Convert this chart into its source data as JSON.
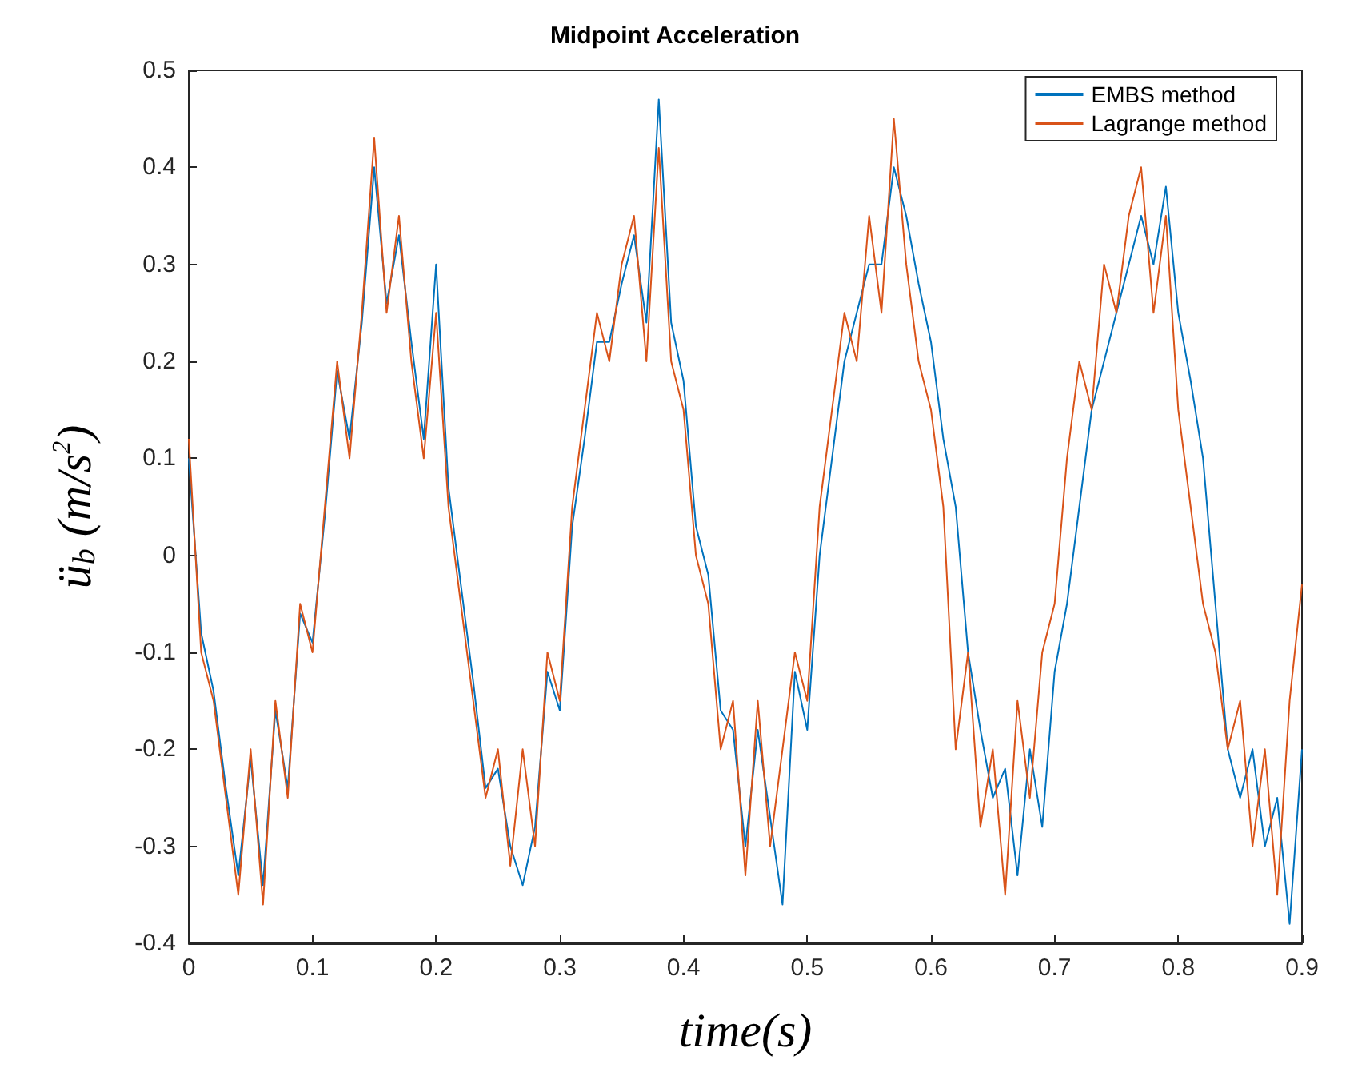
{
  "chart_data": {
    "type": "line",
    "title": "Midpoint Acceleration",
    "xlabel": "time(s)",
    "ylabel": "ü$_{b}$ (m/s$^{2}$)",
    "xlim": [
      0,
      0.9
    ],
    "ylim": [
      -0.4,
      0.5
    ],
    "xticks": [
      0,
      0.1,
      0.2,
      0.3,
      0.4,
      0.5,
      0.6,
      0.7,
      0.8,
      0.9
    ],
    "yticks": [
      -0.4,
      -0.3,
      -0.2,
      -0.1,
      0,
      0.1,
      0.2,
      0.3,
      0.4,
      0.5
    ],
    "grid": false,
    "legend": "top right",
    "marker": "none",
    "line_style": "solid",
    "x": [
      0,
      0.01,
      0.02,
      0.03,
      0.04,
      0.05,
      0.06,
      0.07,
      0.08,
      0.09,
      0.1,
      0.11,
      0.12,
      0.13,
      0.14,
      0.15,
      0.16,
      0.17,
      0.18,
      0.19,
      0.2,
      0.21,
      0.22,
      0.23,
      0.24,
      0.25,
      0.26,
      0.27,
      0.28,
      0.29,
      0.3,
      0.31,
      0.32,
      0.33,
      0.34,
      0.35,
      0.36,
      0.37,
      0.38,
      0.39,
      0.4,
      0.41,
      0.42,
      0.43,
      0.44,
      0.45,
      0.46,
      0.47,
      0.48,
      0.49,
      0.5,
      0.51,
      0.52,
      0.53,
      0.54,
      0.55,
      0.56,
      0.57,
      0.58,
      0.59,
      0.6,
      0.61,
      0.62,
      0.63,
      0.64,
      0.65,
      0.66,
      0.67,
      0.68,
      0.69,
      0.7,
      0.71,
      0.72,
      0.73,
      0.74,
      0.75,
      0.76,
      0.77,
      0.78,
      0.79,
      0.8,
      0.81,
      0.82,
      0.83,
      0.84,
      0.85,
      0.86,
      0.87,
      0.88,
      0.89,
      0.9
    ],
    "series": [
      {
        "name": "EMBS method",
        "color": "#0072bd",
        "values": [
          0.1,
          -0.08,
          -0.14,
          -0.24,
          -0.33,
          -0.21,
          -0.34,
          -0.16,
          -0.24,
          -0.06,
          -0.09,
          0.04,
          0.19,
          0.12,
          0.24,
          0.4,
          0.26,
          0.33,
          0.22,
          0.12,
          0.3,
          0.07,
          -0.03,
          -0.13,
          -0.24,
          -0.22,
          -0.3,
          -0.34,
          -0.28,
          -0.12,
          -0.16,
          0.03,
          0.12,
          0.22,
          0.22,
          0.28,
          0.33,
          0.24,
          0.47,
          0.24,
          0.18,
          0.03,
          -0.02,
          -0.16,
          -0.18,
          -0.3,
          -0.18,
          -0.27,
          -0.36,
          -0.12,
          -0.18,
          0,
          0.1,
          0.2,
          0.25,
          0.3,
          0.3,
          0.4,
          0.35,
          0.28,
          0.22,
          0.12,
          0.05,
          -0.1,
          -0.18,
          -0.25,
          -0.22,
          -0.33,
          -0.2,
          -0.28,
          -0.12,
          -0.05,
          0.05,
          0.15,
          0.2,
          0.25,
          0.3,
          0.35,
          0.3,
          0.38,
          0.25,
          0.18,
          0.1,
          -0.05,
          -0.2,
          -0.25,
          -0.2,
          -0.3,
          -0.25,
          -0.38,
          -0.2
        ]
      },
      {
        "name": "Lagrange method",
        "color": "#d95319",
        "values": [
          0.12,
          -0.1,
          -0.15,
          -0.25,
          -0.35,
          -0.2,
          -0.36,
          -0.15,
          -0.25,
          -0.05,
          -0.1,
          0.05,
          0.2,
          0.1,
          0.25,
          0.43,
          0.25,
          0.35,
          0.2,
          0.1,
          0.25,
          0.05,
          -0.05,
          -0.15,
          -0.25,
          -0.2,
          -0.32,
          -0.2,
          -0.3,
          -0.1,
          -0.15,
          0.05,
          0.15,
          0.25,
          0.2,
          0.3,
          0.35,
          0.2,
          0.42,
          0.2,
          0.15,
          0,
          -0.05,
          -0.2,
          -0.15,
          -0.33,
          -0.15,
          -0.3,
          -0.2,
          -0.1,
          -0.15,
          0.05,
          0.15,
          0.25,
          0.2,
          0.35,
          0.25,
          0.45,
          0.3,
          0.2,
          0.15,
          0.05,
          -0.2,
          -0.1,
          -0.28,
          -0.2,
          -0.35,
          -0.15,
          -0.25,
          -0.1,
          -0.05,
          0.1,
          0.2,
          0.15,
          0.3,
          0.25,
          0.35,
          0.4,
          0.25,
          0.35,
          0.15,
          0.05,
          -0.05,
          -0.1,
          -0.2,
          -0.15,
          -0.3,
          -0.2,
          -0.35,
          -0.15,
          -0.03
        ]
      }
    ]
  }
}
